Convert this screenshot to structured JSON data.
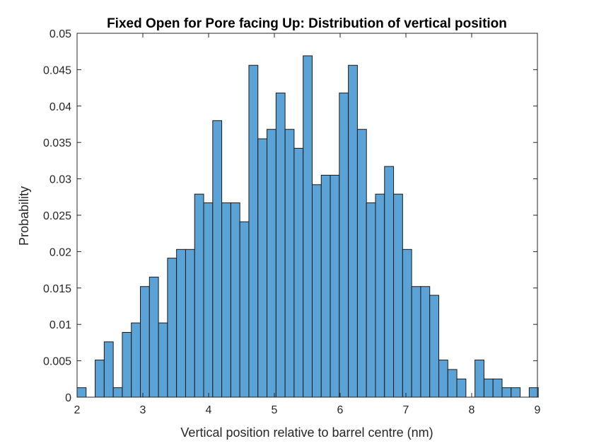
{
  "chart_data": {
    "type": "bar",
    "title": "Fixed Open for Pore facing Up: Distribution of vertical position",
    "xlabel": "Vertical position relative to barrel centre (nm)",
    "ylabel": "Probability",
    "xlim": [
      2,
      9
    ],
    "ylim": [
      0,
      0.05
    ],
    "xticks": [
      2,
      3,
      4,
      5,
      6,
      7,
      8,
      9
    ],
    "yticks": [
      0,
      0.005,
      0.01,
      0.015,
      0.02,
      0.025,
      0.03,
      0.035,
      0.04,
      0.045,
      0.05
    ],
    "xtick_labels": [
      "2",
      "3",
      "4",
      "5",
      "6",
      "7",
      "8",
      "9"
    ],
    "ytick_labels": [
      "0",
      "0.005",
      "0.01",
      "0.015",
      "0.02",
      "0.025",
      "0.03",
      "0.035",
      "0.04",
      "0.045",
      "0.05"
    ],
    "bin_start": 2.0,
    "bin_width": 0.1375,
    "values": [
      0.0013,
      0,
      0.0051,
      0.0076,
      0.0013,
      0.0089,
      0.0102,
      0.0152,
      0.0165,
      0.0102,
      0.0191,
      0.0203,
      0.0203,
      0.0279,
      0.0267,
      0.038,
      0.0267,
      0.0267,
      0.0241,
      0.0456,
      0.0355,
      0.0368,
      0.0418,
      0.0368,
      0.0342,
      0.0469,
      0.0292,
      0.0305,
      0.0305,
      0.0418,
      0.0456,
      0.0368,
      0.0267,
      0.0279,
      0.0317,
      0.0279,
      0.0203,
      0.0152,
      0.0152,
      0.014,
      0.0051,
      0.0038,
      0.0025,
      0,
      0.0051,
      0.0025,
      0.0025,
      0.0013,
      0.0013,
      0,
      0.0013
    ],
    "grid": false,
    "colors": {
      "bar_fill": "#5ba3d6",
      "bar_edge": "#1a1a1a",
      "axis": "#262626"
    }
  }
}
